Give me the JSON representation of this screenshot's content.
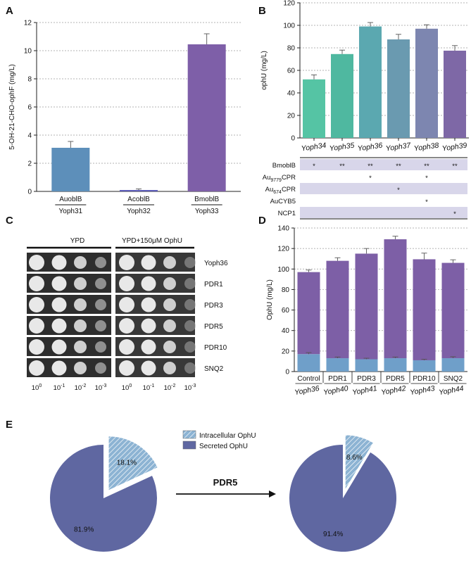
{
  "panels": {
    "A": {
      "letter": "A",
      "chart_data": {
        "type": "bar",
        "ylabel": "5-OH-21-CHO-ophF (mg/L)",
        "ylim": [
          0,
          12
        ],
        "yticks": [
          0,
          2,
          4,
          6,
          8,
          10,
          12
        ],
        "categories": [
          "AuoblB",
          "AcoblB",
          "BmoblB"
        ],
        "strains": [
          "Yoph31",
          "Yoph32",
          "Yoph33"
        ],
        "values": [
          3.1,
          0.1,
          10.45
        ],
        "errors": [
          0.45,
          0.08,
          0.75
        ],
        "colors": [
          "#5d8fba",
          "#5c5cb8",
          "#7e5fa8"
        ],
        "grid": true
      }
    },
    "B": {
      "letter": "B",
      "chart_data": {
        "type": "bar",
        "ylabel": "ophU (mg/L)",
        "ylim": [
          0,
          120
        ],
        "yticks": [
          0,
          20,
          40,
          60,
          80,
          100,
          120
        ],
        "categories": [
          "Yoph34",
          "Yoph35",
          "Yoph36",
          "Yoph37",
          "Yoph38",
          "Yoph39"
        ],
        "values": [
          52,
          74.5,
          99,
          87.5,
          97,
          77.5
        ],
        "errors": [
          4,
          3.5,
          3.5,
          4.5,
          3.5,
          4.5
        ],
        "colors": [
          "#55c4a4",
          "#4fb8a0",
          "#5ba8b0",
          "#6a9ab0",
          "#7d86b0",
          "#7e68a6"
        ],
        "grid": true
      },
      "table": {
        "rows": [
          {
            "label_main": "BmoblB",
            "label_sub": "",
            "label_tail": "",
            "marks": [
              "*",
              "**",
              "**",
              "**",
              "**",
              "**"
            ]
          },
          {
            "label_main": "Au",
            "label_sub": "9779",
            "label_tail": "CPR",
            "marks": [
              "",
              "",
              "*",
              "",
              "*",
              ""
            ]
          },
          {
            "label_main": "Au",
            "label_sub": "674",
            "label_tail": "CPR",
            "marks": [
              "",
              "",
              "",
              "*",
              "",
              ""
            ]
          },
          {
            "label_main": "AuCYB5",
            "label_sub": "",
            "label_tail": "",
            "marks": [
              "",
              "",
              "",
              "",
              "*",
              ""
            ]
          },
          {
            "label_main": "NCP1",
            "label_sub": "",
            "label_tail": "",
            "marks": [
              "",
              "",
              "",
              "",
              "",
              "*"
            ]
          }
        ],
        "shade_color": "#d8d6ea"
      }
    },
    "C": {
      "letter": "C",
      "condition_left": "YPD",
      "condition_right": "YPD+150μM OphU",
      "strains": [
        "Yoph36",
        "PDR1",
        "PDR3",
        "PDR5",
        "PDR10",
        "SNQ2"
      ],
      "dilution_base": "10",
      "dilution_exponents": [
        "0",
        "-1",
        "-2",
        "-3"
      ]
    },
    "D": {
      "letter": "D",
      "chart_data": {
        "type": "bar",
        "stacked": true,
        "ylabel": "OphU (mg/L)",
        "ylim": [
          0,
          140
        ],
        "yticks": [
          0,
          20,
          40,
          60,
          80,
          100,
          120,
          140
        ],
        "categories": [
          "Control",
          "PDR1",
          "PDR3",
          "PDR5",
          "PDR10",
          "SNQ2"
        ],
        "strains": [
          "Yoph36",
          "Yoph40",
          "Yoph41",
          "Yoph42",
          "Yoph43",
          "Yoph44"
        ],
        "series": [
          {
            "name": "Intracellular OphU",
            "values": [
              17,
              13,
              12,
              13,
              11,
              13
            ],
            "errors": [
              1.5,
              1.2,
              1,
              1.2,
              1,
              1.5
            ],
            "color": "#6f9fc9"
          },
          {
            "name": "Secreted OphU",
            "values": [
              80,
              95,
              103,
              116,
              98.5,
              93
            ],
            "errors": [
              2,
              3,
              5,
              3,
              6,
              3
            ],
            "color": "#7d5fa6"
          }
        ],
        "grid": true
      }
    },
    "E": {
      "letter": "E",
      "arrow_label": "PDR5",
      "legend": [
        {
          "label": "Intracellular OphU",
          "color": "#8cb3d3"
        },
        {
          "label": "Secreted OphU",
          "color": "#5f67a1"
        }
      ],
      "chart_data": [
        {
          "type": "pie",
          "labels": [
            "Intracellular OphU",
            "Secreted OphU"
          ],
          "values": [
            18.1,
            81.9
          ],
          "value_labels": [
            "18.1%",
            "81.9%"
          ]
        },
        {
          "type": "pie",
          "labels": [
            "Intracellular OphU",
            "Secreted OphU"
          ],
          "values": [
            8.6,
            91.4
          ],
          "value_labels": [
            "8.6%",
            "91.4%"
          ]
        }
      ]
    }
  }
}
